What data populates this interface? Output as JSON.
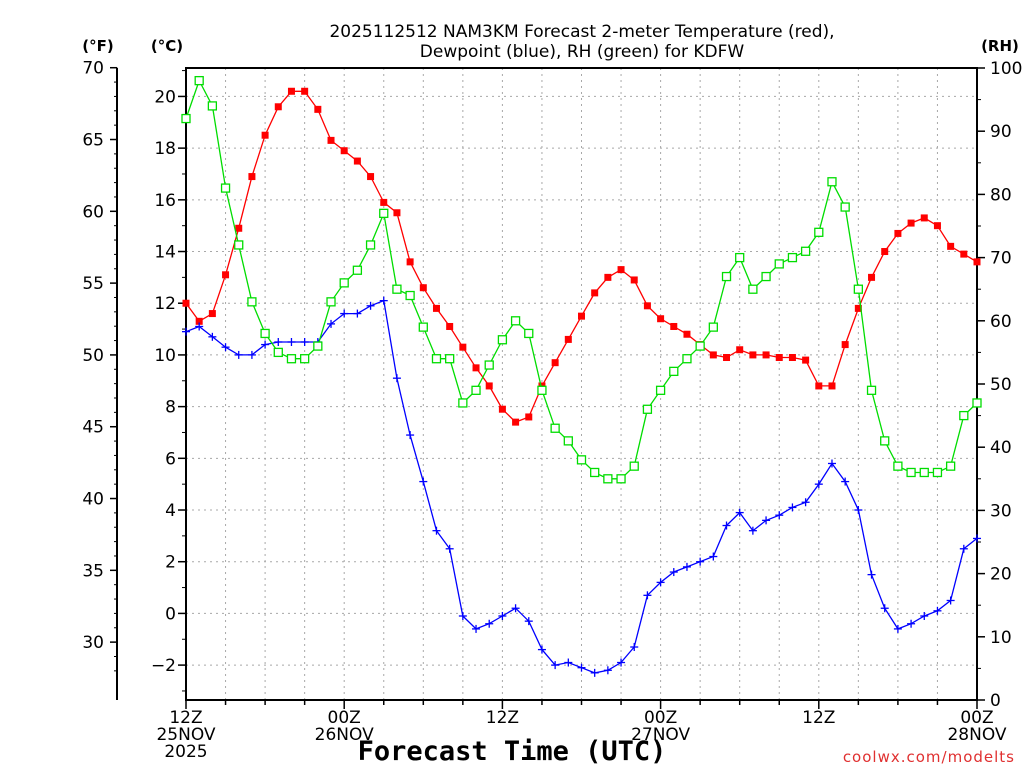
{
  "chart_data": {
    "type": "line",
    "title": "2025112512 NAM3KM Forecast 2-meter Temperature (red),",
    "subtitle": "Dewpoint (blue), RH (green) for KDFW",
    "xlabel": "Forecast Time (UTC)",
    "watermark": "coolwx.com/modelts",
    "axis_labels": {
      "fahrenheit": "(°F)",
      "celsius": "(°C)",
      "rh": "(RH)"
    },
    "x_range_hours": [
      0,
      60
    ],
    "celsius_range": [
      -3.35,
      21.1
    ],
    "rh_range": [
      0,
      100
    ],
    "fahrenheit_ticks": [
      "70",
      "65",
      "60",
      "55",
      "50",
      "45",
      "40",
      "35",
      "30"
    ],
    "celsius_ticks": [
      "20",
      "18",
      "16",
      "14",
      "12",
      "10",
      "8",
      "6",
      "4",
      "2",
      "0",
      "−2"
    ],
    "rh_ticks": [
      "100",
      "90",
      "80",
      "70",
      "60",
      "50",
      "40",
      "30",
      "20",
      "10",
      "0"
    ],
    "x_ticks": [
      {
        "hour": 0,
        "lines": [
          "12Z",
          "25NOV",
          "2025"
        ]
      },
      {
        "hour": 12,
        "lines": [
          "00Z",
          "26NOV"
        ]
      },
      {
        "hour": 24,
        "lines": [
          "12Z"
        ]
      },
      {
        "hour": 36,
        "lines": [
          "00Z",
          "27NOV"
        ]
      },
      {
        "hour": 48,
        "lines": [
          "12Z"
        ]
      },
      {
        "hour": 60,
        "lines": [
          "00Z",
          "28NOV"
        ]
      }
    ],
    "series": [
      {
        "name": "2-meter Temperature",
        "units": "°C",
        "color": "#ff0000",
        "marker": "filled-square",
        "x": [
          0,
          1,
          2,
          3,
          4,
          5,
          6,
          7,
          8,
          9,
          10,
          11,
          12,
          13,
          14,
          15,
          16,
          17,
          18,
          19,
          20,
          21,
          22,
          23,
          24,
          25,
          26,
          27,
          28,
          29,
          30,
          31,
          32,
          33,
          34,
          35,
          36,
          37,
          38,
          39,
          40,
          41,
          42,
          43,
          44,
          45,
          46,
          47,
          48,
          49,
          50,
          51,
          52,
          53,
          54,
          55,
          56,
          57,
          58,
          59,
          60
        ],
        "values": [
          12.0,
          11.3,
          11.6,
          13.1,
          14.9,
          16.9,
          18.5,
          19.6,
          20.2,
          20.2,
          19.5,
          18.3,
          17.9,
          17.5,
          16.9,
          15.9,
          15.5,
          13.6,
          12.6,
          11.8,
          11.1,
          10.3,
          9.5,
          8.8,
          7.9,
          7.4,
          7.6,
          8.8,
          9.7,
          10.6,
          11.5,
          12.4,
          13.0,
          13.3,
          12.9,
          11.9,
          11.4,
          11.1,
          10.8,
          10.4,
          10.0,
          9.9,
          10.2,
          10.0,
          10.0,
          9.9,
          9.9,
          9.8,
          8.8,
          8.8,
          10.4,
          11.8,
          13.0,
          14.0,
          14.7,
          15.1,
          15.3,
          15.0,
          14.2,
          13.9,
          13.6
        ]
      },
      {
        "name": "Dewpoint",
        "units": "°C",
        "color": "#0000ff",
        "marker": "plus",
        "x": [
          0,
          1,
          2,
          3,
          4,
          5,
          6,
          7,
          8,
          9,
          10,
          11,
          12,
          13,
          14,
          15,
          16,
          17,
          18,
          19,
          20,
          21,
          22,
          23,
          24,
          25,
          26,
          27,
          28,
          29,
          30,
          31,
          32,
          33,
          34,
          35,
          36,
          37,
          38,
          39,
          40,
          41,
          42,
          43,
          44,
          45,
          46,
          47,
          48,
          49,
          50,
          51,
          52,
          53,
          54,
          55,
          56,
          57,
          58,
          59,
          60
        ],
        "values": [
          10.9,
          11.1,
          10.7,
          10.3,
          10.0,
          10.0,
          10.4,
          10.5,
          10.5,
          10.5,
          10.5,
          11.2,
          11.6,
          11.6,
          11.9,
          12.1,
          9.1,
          6.9,
          5.1,
          3.2,
          2.5,
          -0.1,
          -0.6,
          -0.4,
          -0.1,
          0.2,
          -0.3,
          -1.4,
          -2.0,
          -1.9,
          -2.1,
          -2.3,
          -2.2,
          -1.9,
          -1.3,
          0.7,
          1.2,
          1.6,
          1.8,
          2.0,
          2.2,
          3.4,
          3.9,
          3.2,
          3.6,
          3.8,
          4.1,
          4.3,
          5.0,
          5.8,
          5.1,
          4.0,
          1.5,
          0.2,
          -0.6,
          -0.4,
          -0.1,
          0.1,
          0.5,
          2.5,
          2.9
        ]
      },
      {
        "name": "RH",
        "units": "%",
        "color": "#00dd00",
        "marker": "open-square",
        "x": [
          0,
          1,
          2,
          3,
          4,
          5,
          6,
          7,
          8,
          9,
          10,
          11,
          12,
          13,
          14,
          15,
          16,
          17,
          18,
          19,
          20,
          21,
          22,
          23,
          24,
          25,
          26,
          27,
          28,
          29,
          30,
          31,
          32,
          33,
          34,
          35,
          36,
          37,
          38,
          39,
          40,
          41,
          42,
          43,
          44,
          45,
          46,
          47,
          48,
          49,
          50,
          51,
          52,
          53,
          54,
          55,
          56,
          57,
          58,
          59,
          60
        ],
        "values": [
          92,
          98,
          94,
          81,
          72,
          63,
          58,
          55,
          54,
          54,
          56,
          63,
          66,
          68,
          72,
          77,
          65,
          64,
          59,
          54,
          54,
          47,
          49,
          53,
          57,
          60,
          58,
          49,
          43,
          41,
          38,
          36,
          35,
          35,
          37,
          46,
          49,
          52,
          54,
          56,
          59,
          67,
          70,
          65,
          67,
          69,
          70,
          71,
          74,
          82,
          78,
          65,
          49,
          41,
          37,
          36,
          36,
          36,
          37,
          45,
          47
        ]
      }
    ],
    "grid": true,
    "legend": "in title"
  }
}
